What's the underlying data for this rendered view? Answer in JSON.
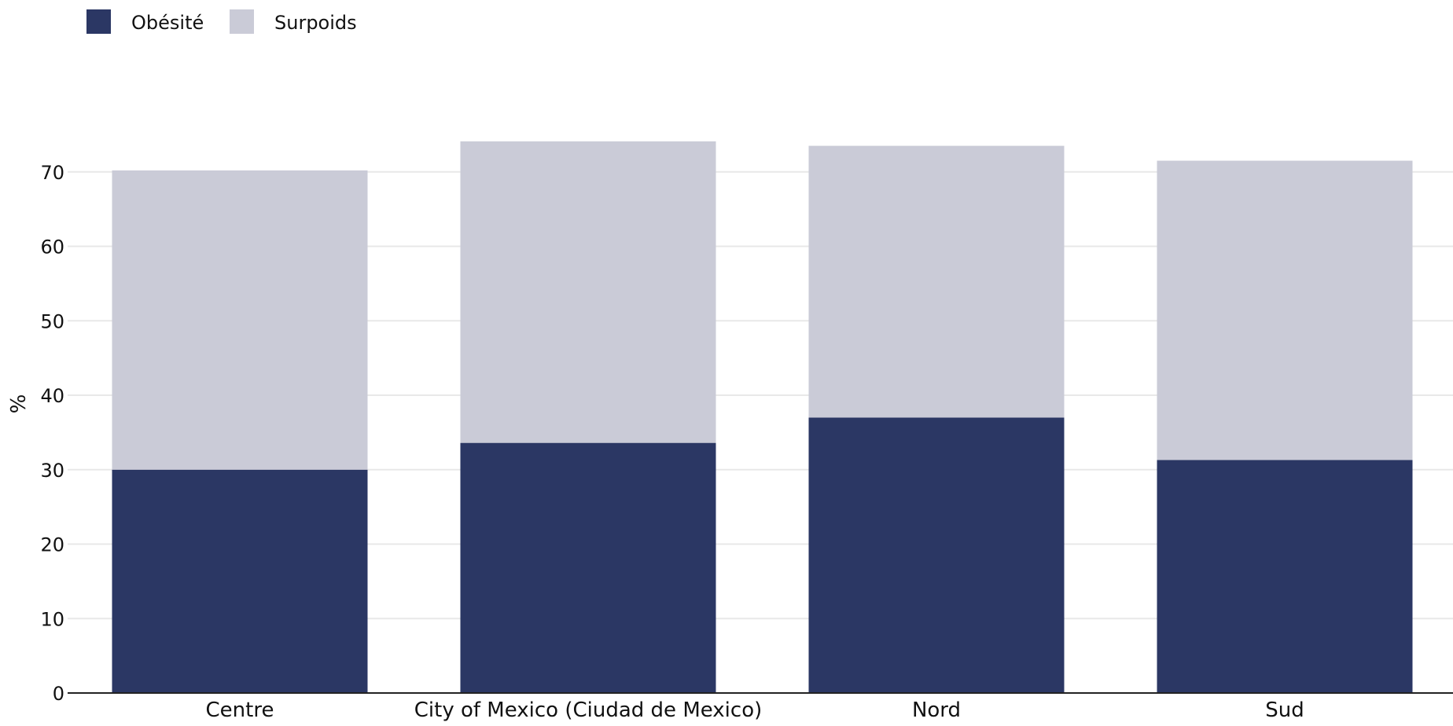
{
  "chart_data": {
    "type": "bar",
    "stacked": true,
    "title": "",
    "xlabel": "",
    "ylabel": "%",
    "ylim": [
      0,
      75
    ],
    "yticks": [
      0,
      10,
      20,
      30,
      40,
      50,
      60,
      70
    ],
    "grid": true,
    "legend_position": "top-left",
    "categories": [
      "Centre",
      "City of Mexico (Ciudad de Mexico)",
      "Nord",
      "Sud"
    ],
    "series": [
      {
        "name": "Obésité",
        "color": "#2b3764",
        "values": [
          30.0,
          33.6,
          37.0,
          31.3
        ]
      },
      {
        "name": "Surpoids",
        "color": "#cacbd7",
        "values": [
          40.2,
          40.5,
          36.5,
          40.2
        ]
      }
    ]
  }
}
